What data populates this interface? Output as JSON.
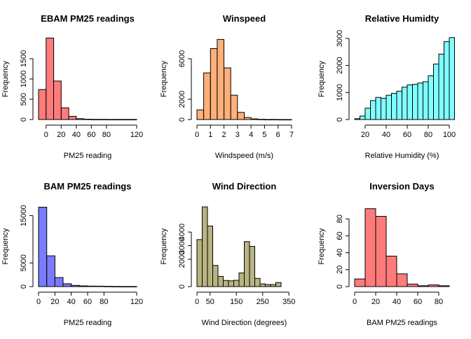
{
  "page": {
    "background": "#ffffff"
  },
  "chart_data": [
    {
      "type": "bar",
      "title": "EBAM PM25 readings",
      "xlabel": "PM25 reading",
      "ylabel": "Frequency",
      "color": "#ff7b7b",
      "xlim": [
        -10,
        120
      ],
      "ylim": [
        0,
        2000
      ],
      "xticks": [
        0,
        20,
        40,
        60,
        80,
        120
      ],
      "yticks": [
        0,
        500,
        1000,
        1500
      ],
      "bins": [
        {
          "x0": -10,
          "x1": 0,
          "y": 740
        },
        {
          "x0": 0,
          "x1": 10,
          "y": 2010
        },
        {
          "x0": 10,
          "x1": 20,
          "y": 950
        },
        {
          "x0": 20,
          "x1": 30,
          "y": 290
        },
        {
          "x0": 30,
          "x1": 40,
          "y": 80
        },
        {
          "x0": 40,
          "x1": 50,
          "y": 20
        },
        {
          "x0": 50,
          "x1": 60,
          "y": 8
        },
        {
          "x0": 60,
          "x1": 70,
          "y": 4
        },
        {
          "x0": 70,
          "x1": 80,
          "y": 3
        },
        {
          "x0": 80,
          "x1": 90,
          "y": 2
        },
        {
          "x0": 90,
          "x1": 100,
          "y": 2
        },
        {
          "x0": 100,
          "x1": 110,
          "y": 1
        },
        {
          "x0": 110,
          "x1": 120,
          "y": 1
        }
      ]
    },
    {
      "type": "bar",
      "title": "Winspeed",
      "xlabel": "Windspeed (m/s)",
      "ylabel": "Frequency",
      "color": "#ffb07a",
      "xlim": [
        0,
        7
      ],
      "ylim": [
        0,
        8000
      ],
      "xticks": [
        0,
        1,
        2,
        3,
        4,
        5,
        6,
        7
      ],
      "yticks": [
        0,
        2000,
        6000
      ],
      "bins": [
        {
          "x0": 0,
          "x1": 0.5,
          "y": 950
        },
        {
          "x0": 0.5,
          "x1": 1,
          "y": 4600
        },
        {
          "x0": 1,
          "x1": 1.5,
          "y": 7000
        },
        {
          "x0": 1.5,
          "x1": 2,
          "y": 7900
        },
        {
          "x0": 2,
          "x1": 2.5,
          "y": 5100
        },
        {
          "x0": 2.5,
          "x1": 3,
          "y": 2400
        },
        {
          "x0": 3,
          "x1": 3.5,
          "y": 700
        },
        {
          "x0": 3.5,
          "x1": 4,
          "y": 200
        },
        {
          "x0": 4,
          "x1": 4.5,
          "y": 60
        },
        {
          "x0": 4.5,
          "x1": 5,
          "y": 20
        },
        {
          "x0": 5,
          "x1": 5.5,
          "y": 8
        },
        {
          "x0": 5.5,
          "x1": 6,
          "y": 4
        },
        {
          "x0": 6,
          "x1": 6.5,
          "y": 2
        },
        {
          "x0": 6.5,
          "x1": 7,
          "y": 1
        }
      ]
    },
    {
      "type": "bar",
      "title": "Relative Humidty",
      "xlabel": "Relative Humidity (%)",
      "ylabel": "Frequency",
      "color": "#7fffff",
      "xlim": [
        10,
        100
      ],
      "ylim": [
        0,
        3000
      ],
      "xticks": [
        20,
        40,
        60,
        80,
        100
      ],
      "yticks": [
        0,
        1000,
        2000,
        3000
      ],
      "bins": [
        {
          "x0": 10,
          "x1": 15,
          "y": 30
        },
        {
          "x0": 15,
          "x1": 20,
          "y": 130
        },
        {
          "x0": 20,
          "x1": 25,
          "y": 420
        },
        {
          "x0": 25,
          "x1": 30,
          "y": 700
        },
        {
          "x0": 30,
          "x1": 35,
          "y": 820
        },
        {
          "x0": 35,
          "x1": 40,
          "y": 790
        },
        {
          "x0": 40,
          "x1": 45,
          "y": 900
        },
        {
          "x0": 45,
          "x1": 50,
          "y": 970
        },
        {
          "x0": 50,
          "x1": 55,
          "y": 1050
        },
        {
          "x0": 55,
          "x1": 60,
          "y": 1200
        },
        {
          "x0": 60,
          "x1": 65,
          "y": 1280
        },
        {
          "x0": 65,
          "x1": 70,
          "y": 1300
        },
        {
          "x0": 70,
          "x1": 75,
          "y": 1350
        },
        {
          "x0": 75,
          "x1": 80,
          "y": 1400
        },
        {
          "x0": 80,
          "x1": 85,
          "y": 1620
        },
        {
          "x0": 85,
          "x1": 90,
          "y": 2050
        },
        {
          "x0": 90,
          "x1": 95,
          "y": 2420
        },
        {
          "x0": 95,
          "x1": 100,
          "y": 2880
        },
        {
          "x0": 100,
          "x1": 105,
          "y": 3030
        }
      ]
    },
    {
      "type": "bar",
      "title": "BAM PM25 readings",
      "xlabel": "PM25 reading",
      "ylabel": "Frequency",
      "color": "#7b7bff",
      "xlim": [
        0,
        120
      ],
      "ylim": [
        0,
        17000
      ],
      "xticks": [
        0,
        20,
        40,
        60,
        80,
        120
      ],
      "yticks": [
        0,
        5000,
        15000
      ],
      "bins": [
        {
          "x0": 0,
          "x1": 10,
          "y": 16800
        },
        {
          "x0": 10,
          "x1": 20,
          "y": 6500
        },
        {
          "x0": 20,
          "x1": 30,
          "y": 1900
        },
        {
          "x0": 30,
          "x1": 40,
          "y": 600
        },
        {
          "x0": 40,
          "x1": 50,
          "y": 250
        },
        {
          "x0": 50,
          "x1": 60,
          "y": 150
        },
        {
          "x0": 60,
          "x1": 70,
          "y": 110
        },
        {
          "x0": 70,
          "x1": 80,
          "y": 90
        },
        {
          "x0": 80,
          "x1": 90,
          "y": 60
        },
        {
          "x0": 90,
          "x1": 100,
          "y": 30
        },
        {
          "x0": 100,
          "x1": 110,
          "y": 20
        },
        {
          "x0": 110,
          "x1": 120,
          "y": 10
        }
      ]
    },
    {
      "type": "bar",
      "title": "Wind Direction",
      "xlabel": "Wind Direction (degrees)",
      "ylabel": "Frequency",
      "color": "#b7b481",
      "xlim": [
        0,
        360
      ],
      "ylim": [
        0,
        5900
      ],
      "xticks": [
        0,
        50,
        150,
        250,
        350
      ],
      "yticks": [
        0,
        2000,
        3000,
        4000
      ],
      "bins": [
        {
          "x0": 0,
          "x1": 20,
          "y": 3450
        },
        {
          "x0": 20,
          "x1": 40,
          "y": 5850
        },
        {
          "x0": 40,
          "x1": 60,
          "y": 4450
        },
        {
          "x0": 60,
          "x1": 80,
          "y": 1550
        },
        {
          "x0": 80,
          "x1": 100,
          "y": 750
        },
        {
          "x0": 100,
          "x1": 120,
          "y": 450
        },
        {
          "x0": 120,
          "x1": 140,
          "y": 420
        },
        {
          "x0": 140,
          "x1": 160,
          "y": 460
        },
        {
          "x0": 160,
          "x1": 180,
          "y": 1000
        },
        {
          "x0": 180,
          "x1": 200,
          "y": 3300
        },
        {
          "x0": 200,
          "x1": 220,
          "y": 2950
        },
        {
          "x0": 220,
          "x1": 240,
          "y": 600
        },
        {
          "x0": 240,
          "x1": 260,
          "y": 200
        },
        {
          "x0": 260,
          "x1": 280,
          "y": 150
        },
        {
          "x0": 280,
          "x1": 300,
          "y": 150
        },
        {
          "x0": 300,
          "x1": 320,
          "y": 300
        }
      ]
    },
    {
      "type": "bar",
      "title": "Inversion Days",
      "xlabel": "BAM PM25 readings",
      "ylabel": "Frequency",
      "color": "#ff7b7b",
      "xlim": [
        0,
        90
      ],
      "ylim": [
        0,
        95
      ],
      "xticks": [
        0,
        20,
        40,
        60,
        80
      ],
      "yticks": [
        0,
        20,
        40,
        60,
        80
      ],
      "bins": [
        {
          "x0": 0,
          "x1": 10,
          "y": 9
        },
        {
          "x0": 10,
          "x1": 20,
          "y": 92
        },
        {
          "x0": 20,
          "x1": 30,
          "y": 83
        },
        {
          "x0": 30,
          "x1": 40,
          "y": 36
        },
        {
          "x0": 40,
          "x1": 50,
          "y": 15
        },
        {
          "x0": 50,
          "x1": 60,
          "y": 3
        },
        {
          "x0": 60,
          "x1": 70,
          "y": 1
        },
        {
          "x0": 70,
          "x1": 80,
          "y": 2
        },
        {
          "x0": 80,
          "x1": 90,
          "y": 1
        }
      ]
    }
  ]
}
